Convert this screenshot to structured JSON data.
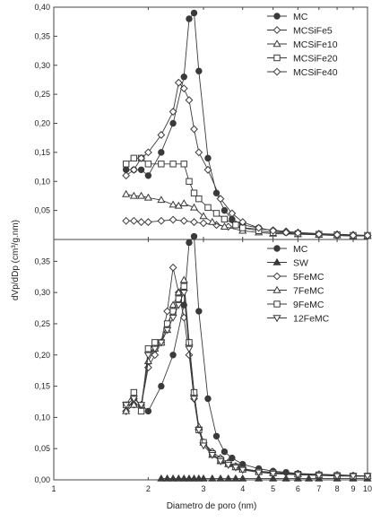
{
  "chart_data": [
    {
      "panel": "top",
      "type": "line",
      "x_scale": "log",
      "xlim": [
        1,
        10
      ],
      "ylim": [
        0,
        0.4
      ],
      "ylabel": "",
      "yticks": [
        {
          "value": 0.05,
          "label": "0,05"
        },
        {
          "value": 0.1,
          "label": "0,10"
        },
        {
          "value": 0.15,
          "label": "0,15"
        },
        {
          "value": 0.2,
          "label": "0,20"
        },
        {
          "value": 0.25,
          "label": "0,25"
        },
        {
          "value": 0.3,
          "label": "0,30"
        },
        {
          "value": 0.35,
          "label": "0,35"
        },
        {
          "value": 0.4,
          "label": "0,40"
        }
      ],
      "legend_position": "top-right",
      "series": [
        {
          "name": "MC",
          "marker": "circle-filled",
          "x": [
            1.7,
            1.8,
            1.9,
            2.0,
            2.2,
            2.4,
            2.6,
            2.7,
            2.8,
            2.9,
            3.1,
            3.3,
            3.5,
            3.7,
            4.0,
            4.5,
            5.0,
            5.5,
            6.0,
            7.0,
            8.0,
            9.0,
            10.0
          ],
          "y": [
            0.12,
            0.12,
            0.12,
            0.11,
            0.15,
            0.2,
            0.28,
            0.38,
            0.39,
            0.29,
            0.14,
            0.08,
            0.05,
            0.035,
            0.025,
            0.02,
            0.015,
            0.012,
            0.01,
            0.008,
            0.007,
            0.006,
            0.006
          ]
        },
        {
          "name": "MCSiFe5",
          "marker": "diamond-open",
          "x": [
            1.7,
            1.8,
            1.9,
            2.0,
            2.2,
            2.4,
            2.6,
            2.8,
            3.0,
            3.3,
            3.6,
            4.0,
            4.5,
            5.0,
            5.5,
            6.0,
            7.0,
            8.0,
            9.0,
            10.0
          ],
          "y": [
            0.032,
            0.032,
            0.03,
            0.03,
            0.032,
            0.034,
            0.032,
            0.03,
            0.028,
            0.025,
            0.022,
            0.02,
            0.018,
            0.016,
            0.014,
            0.012,
            0.01,
            0.009,
            0.008,
            0.007
          ]
        },
        {
          "name": "MCSiFe10",
          "marker": "triangle-up-open",
          "x": [
            1.7,
            1.8,
            1.9,
            2.0,
            2.2,
            2.4,
            2.5,
            2.6,
            2.8,
            3.0,
            3.2,
            3.5,
            4.0,
            4.5,
            5.0,
            6.0,
            7.0,
            8.0,
            9.0,
            10.0
          ],
          "y": [
            0.078,
            0.075,
            0.075,
            0.072,
            0.068,
            0.06,
            0.058,
            0.062,
            0.055,
            0.04,
            0.03,
            0.022,
            0.015,
            0.012,
            0.01,
            0.009,
            0.008,
            0.007,
            0.006,
            0.006
          ]
        },
        {
          "name": "MCSiFe20",
          "marker": "square-open",
          "x": [
            1.7,
            1.8,
            1.9,
            2.0,
            2.2,
            2.4,
            2.6,
            2.7,
            2.8,
            2.9,
            3.1,
            3.3,
            3.5,
            3.8,
            4.0,
            4.5,
            5.0,
            6.0,
            7.0,
            8.0,
            9.0,
            10.0
          ],
          "y": [
            0.13,
            0.14,
            0.14,
            0.13,
            0.13,
            0.13,
            0.13,
            0.1,
            0.08,
            0.07,
            0.055,
            0.045,
            0.035,
            0.025,
            0.02,
            0.015,
            0.012,
            0.01,
            0.009,
            0.008,
            0.007,
            0.007
          ]
        },
        {
          "name": "MCSiFe40",
          "marker": "diamond-open",
          "x": [
            1.7,
            1.8,
            1.9,
            2.0,
            2.2,
            2.4,
            2.5,
            2.6,
            2.7,
            2.8,
            2.9,
            3.1,
            3.4,
            3.7,
            4.0,
            4.5,
            5.0,
            5.5,
            6.0,
            7.0,
            8.0,
            9.0,
            10.0
          ],
          "y": [
            0.11,
            0.12,
            0.14,
            0.15,
            0.18,
            0.22,
            0.27,
            0.26,
            0.24,
            0.19,
            0.15,
            0.12,
            0.07,
            0.045,
            0.03,
            0.02,
            0.015,
            0.012,
            0.011,
            0.009,
            0.008,
            0.007,
            0.007
          ]
        }
      ]
    },
    {
      "panel": "bottom",
      "type": "line",
      "x_scale": "log",
      "xlim": [
        1,
        10
      ],
      "ylim": [
        0,
        0.385
      ],
      "xlabel": "Diametro de poro (nm)",
      "ylabel": "",
      "xticks": [
        {
          "value": 1,
          "label": "1"
        },
        {
          "value": 2,
          "label": "2"
        },
        {
          "value": 3,
          "label": "3"
        },
        {
          "value": 4,
          "label": "4"
        },
        {
          "value": 5,
          "label": "5"
        },
        {
          "value": 6,
          "label": "6"
        },
        {
          "value": 7,
          "label": "7"
        },
        {
          "value": 8,
          "label": "8"
        },
        {
          "value": 9,
          "label": "9"
        },
        {
          "value": 10,
          "label": "10"
        }
      ],
      "yticks": [
        {
          "value": 0.0,
          "label": "0,00"
        },
        {
          "value": 0.05,
          "label": "0,05"
        },
        {
          "value": 0.1,
          "label": "0,10"
        },
        {
          "value": 0.15,
          "label": "0,15"
        },
        {
          "value": 0.2,
          "label": "0,20"
        },
        {
          "value": 0.25,
          "label": "0,25"
        },
        {
          "value": 0.3,
          "label": "0,30"
        },
        {
          "value": 0.35,
          "label": "0,35"
        }
      ],
      "legend_position": "top-right",
      "series": [
        {
          "name": "MC",
          "marker": "circle-filled",
          "x": [
            1.7,
            1.8,
            1.9,
            2.0,
            2.2,
            2.4,
            2.6,
            2.7,
            2.8,
            2.9,
            3.1,
            3.3,
            3.5,
            3.7,
            4.0,
            4.5,
            5.0,
            5.5,
            6.0,
            7.0,
            8.0,
            9.0,
            10.0
          ],
          "y": [
            0.12,
            0.12,
            0.12,
            0.11,
            0.15,
            0.2,
            0.28,
            0.38,
            0.39,
            0.27,
            0.13,
            0.07,
            0.045,
            0.035,
            0.025,
            0.018,
            0.014,
            0.012,
            0.01,
            0.008,
            0.007,
            0.006,
            0.006
          ]
        },
        {
          "name": "SW",
          "marker": "triangle-up-filled",
          "x": [
            2.2,
            2.3,
            2.4,
            2.5,
            2.6,
            2.7,
            2.8,
            2.9,
            3.0,
            3.2,
            3.4,
            3.6,
            3.8,
            4.0,
            4.5,
            5.0,
            5.5,
            6.0,
            6.5,
            7.0,
            8.0,
            9.0,
            10.0
          ],
          "y": [
            0.002,
            0.002,
            0.002,
            0.002,
            0.002,
            0.002,
            0.002,
            0.002,
            0.002,
            0.002,
            0.002,
            0.002,
            0.002,
            0.002,
            0.002,
            0.002,
            0.002,
            0.002,
            0.002,
            0.002,
            0.002,
            0.002,
            0.002
          ]
        },
        {
          "name": "5FeMC",
          "marker": "diamond-open",
          "x": [
            1.7,
            1.8,
            1.9,
            2.0,
            2.1,
            2.2,
            2.3,
            2.4,
            2.5,
            2.6,
            2.7,
            2.8,
            2.9,
            3.0,
            3.2,
            3.4,
            3.6,
            3.8,
            4.0,
            4.5,
            5.0,
            6.0,
            7.0,
            8.0,
            9.0,
            10.0
          ],
          "y": [
            0.11,
            0.13,
            0.12,
            0.18,
            0.2,
            0.22,
            0.27,
            0.34,
            0.3,
            0.26,
            0.2,
            0.13,
            0.08,
            0.06,
            0.045,
            0.035,
            0.028,
            0.022,
            0.018,
            0.014,
            0.012,
            0.01,
            0.009,
            0.008,
            0.007,
            0.006
          ]
        },
        {
          "name": "7FeMC",
          "marker": "triangle-up-open",
          "x": [
            1.7,
            1.8,
            1.9,
            2.0,
            2.1,
            2.2,
            2.3,
            2.4,
            2.5,
            2.6,
            2.7,
            2.8,
            2.9,
            3.0,
            3.2,
            3.4,
            3.6,
            3.8,
            4.0,
            4.5,
            5.0,
            6.0,
            7.0,
            8.0,
            9.0,
            10.0
          ],
          "y": [
            0.11,
            0.12,
            0.12,
            0.19,
            0.21,
            0.22,
            0.24,
            0.28,
            0.3,
            0.32,
            0.22,
            0.14,
            0.085,
            0.06,
            0.04,
            0.03,
            0.025,
            0.02,
            0.017,
            0.013,
            0.011,
            0.009,
            0.008,
            0.007,
            0.006,
            0.006
          ]
        },
        {
          "name": "9FeMC",
          "marker": "square-open",
          "x": [
            1.7,
            1.8,
            1.9,
            2.0,
            2.1,
            2.2,
            2.3,
            2.4,
            2.5,
            2.6,
            2.7,
            2.8,
            2.9,
            3.0,
            3.2,
            3.4,
            3.6,
            3.8,
            4.0,
            4.5,
            5.0,
            6.0,
            7.0,
            8.0,
            9.0,
            10.0
          ],
          "y": [
            0.12,
            0.14,
            0.11,
            0.21,
            0.22,
            0.22,
            0.25,
            0.27,
            0.29,
            0.31,
            0.22,
            0.14,
            0.08,
            0.06,
            0.042,
            0.032,
            0.026,
            0.021,
            0.017,
            0.013,
            0.011,
            0.009,
            0.008,
            0.007,
            0.006,
            0.006
          ]
        },
        {
          "name": "12FeMC",
          "marker": "triangle-down-open",
          "x": [
            1.7,
            1.8,
            1.9,
            2.0,
            2.1,
            2.2,
            2.3,
            2.4,
            2.5,
            2.6,
            2.7,
            2.8,
            2.9,
            3.0,
            3.2,
            3.4,
            3.6,
            3.8,
            4.0,
            4.5,
            5.0,
            6.0,
            7.0,
            8.0,
            9.0,
            10.0
          ],
          "y": [
            0.12,
            0.13,
            0.12,
            0.2,
            0.21,
            0.22,
            0.24,
            0.26,
            0.28,
            0.3,
            0.21,
            0.13,
            0.08,
            0.055,
            0.04,
            0.03,
            0.024,
            0.02,
            0.016,
            0.012,
            0.01,
            0.008,
            0.007,
            0.006,
            0.006,
            0.006
          ]
        }
      ]
    }
  ],
  "shared_ylabel": "dVp/dDp (cm³/g.nm)",
  "colors": {
    "line": "#3a3a3a",
    "axis": "#444444",
    "background": "#ffffff"
  }
}
